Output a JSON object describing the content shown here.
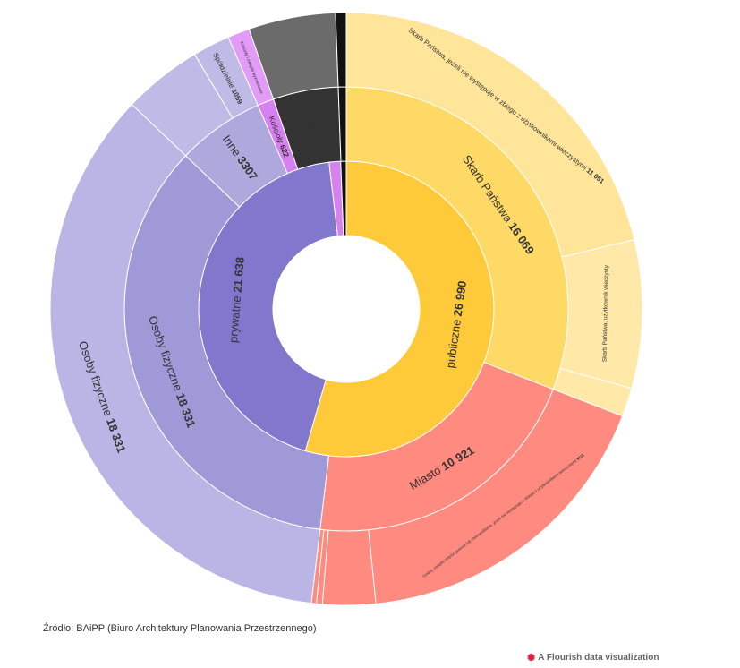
{
  "source_text": "Źródło: BAiPP (Biuro Architektury Planowania Przestrzennego)",
  "credit_text": "A Flourish data visualization",
  "credit_icon": "flourish-logo-icon",
  "chart_data": {
    "type": "sunburst",
    "title": "",
    "colors": {
      "publiczne": "#ffca3a",
      "skarb": "#ffd966",
      "skarb_light": "#ffe599",
      "skarb_lighter": "#ffe8a8",
      "miasto": "#ff8a80",
      "prywatne": "#8177cc",
      "osoby_mid": "#9f99d8",
      "osoby_outer": "#bab5e4",
      "inne_mid": "#aea8dd",
      "spoldzielnie": "#c0bbe6",
      "koscioly": "#d781f0",
      "koscioly_outer": "#e29cf7",
      "inne_dark": "#333333",
      "inne_dark_outer": "#6b6b6b",
      "unknown": "#111111"
    },
    "rings": {
      "inner": [
        {
          "id": "publiczne",
          "name": "publiczne",
          "value": 26990,
          "value_label": "26 990",
          "color": "publiczne"
        },
        {
          "id": "prywatne",
          "name": "prywatne",
          "value": 21638,
          "value_label": "21 638",
          "color": "prywatne"
        },
        {
          "id": "koscioly-i",
          "name": "",
          "value": 622,
          "value_label": "",
          "color": "koscioly"
        },
        {
          "id": "inne-i",
          "name": "",
          "value": 300,
          "value_label": "",
          "color": "unknown"
        }
      ],
      "middle": [
        {
          "id": "skarb",
          "name": "Skarb Państwa",
          "value": 16069,
          "value_label": "16 069",
          "color": "skarb",
          "parent": "publiczne"
        },
        {
          "id": "miasto",
          "name": "Miasto",
          "value": 10921,
          "value_label": "10 921",
          "color": "miasto",
          "parent": "publiczne"
        },
        {
          "id": "osoby",
          "name": "Osoby fizyczne",
          "value": 18331,
          "value_label": "18 331",
          "color": "osoby_mid",
          "parent": "prywatne"
        },
        {
          "id": "inne",
          "name": "Inne",
          "value": 3307,
          "value_label": "3307",
          "color": "inne_mid",
          "parent": "prywatne"
        },
        {
          "id": "koscioly",
          "name": "Kościoły",
          "value": 622,
          "value_label": "622",
          "color": "koscioly"
        },
        {
          "id": "inne2",
          "name": "Inne",
          "value": 2470,
          "value_label": "2470",
          "color": "inne_dark"
        },
        {
          "id": "unk",
          "name": "",
          "value": 300,
          "value_label": "",
          "color": "unknown"
        }
      ],
      "outer": [
        {
          "id": "skarb-nw",
          "name": "Skarb Państwa, jeżeli nie występuje w zbiegu z użytkownikami wieczystymi",
          "value": 11051,
          "value_label": "11 051",
          "color": "skarb_light",
          "parent": "skarb"
        },
        {
          "id": "skarb-uw",
          "name": "Skarb Państwa, użytkownik wieczysty",
          "value": 4200,
          "value_label": "",
          "color": "skarb_lighter",
          "parent": "skarb"
        },
        {
          "id": "skarb-x",
          "name": "",
          "value": 818,
          "value_label": "",
          "color": "skarb_lighter",
          "parent": "skarb"
        },
        {
          "id": "gminy",
          "name": "Gminy, związki międzygminne lub metropolitalne, jeżeli nie występują w zbiegu z użytkownikami wieczystymi",
          "value": 9111,
          "value_label": "9111",
          "color": "miasto",
          "parent": "miasto"
        },
        {
          "id": "miasto-a",
          "name": "",
          "value": 1500,
          "value_label": "",
          "color": "miasto",
          "parent": "miasto"
        },
        {
          "id": "miasto-b",
          "name": "",
          "value": 170,
          "value_label": "",
          "color": "miasto",
          "parent": "miasto"
        },
        {
          "id": "miasto-c",
          "name": "",
          "value": 140,
          "value_label": "",
          "color": "miasto",
          "parent": "miasto"
        },
        {
          "id": "osoby-o",
          "name": "Osoby fizyczne",
          "value": 18331,
          "value_label": "18 331",
          "color": "osoby_outer",
          "parent": "osoby"
        },
        {
          "id": "inne-a",
          "name": "",
          "value": 2248,
          "value_label": "",
          "color": "spoldzielnie",
          "parent": "inne"
        },
        {
          "id": "spoldz",
          "name": "Spółdzielnie",
          "value": 1059,
          "value_label": "1059",
          "color": "spoldzielnie",
          "parent": "inne"
        },
        {
          "id": "kosc-o",
          "name": "Kościoły i związki wyznaniowe",
          "value": 622,
          "value_label": "",
          "color": "koscioly_outer",
          "parent": "koscioly"
        },
        {
          "id": "inne-o",
          "name": "",
          "value": 2470,
          "value_label": "",
          "color": "inne_dark_outer",
          "parent": "inne2"
        },
        {
          "id": "unk-o",
          "name": "",
          "value": 300,
          "value_label": "",
          "color": "unknown",
          "parent": "unk"
        }
      ]
    }
  }
}
